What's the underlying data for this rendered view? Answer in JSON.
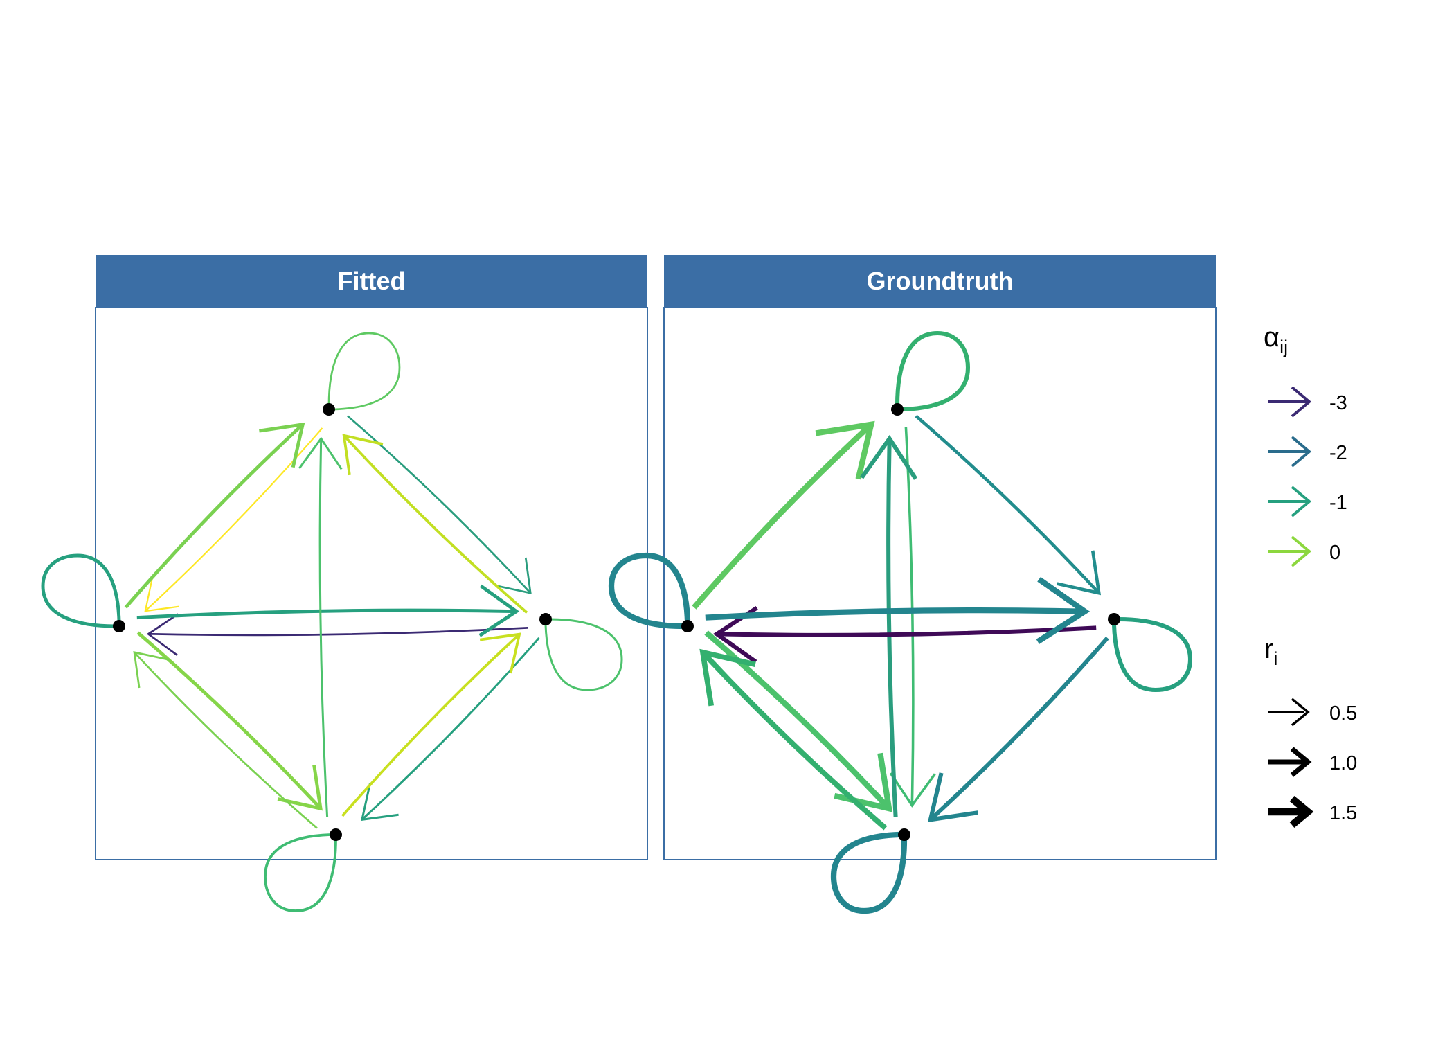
{
  "panels": [
    {
      "id": "fitted",
      "title": "Fitted",
      "edges": [
        {
          "from": "top",
          "to": "left",
          "color": "#fde725",
          "weight": 0.4
        },
        {
          "from": "left",
          "to": "top",
          "color": "#7ad151",
          "weight": 0.9
        },
        {
          "from": "top",
          "to": "right",
          "color": "#2a9d7e",
          "weight": 0.5
        },
        {
          "from": "right",
          "to": "top",
          "color": "#c2df23",
          "weight": 0.7
        },
        {
          "from": "right",
          "to": "left",
          "color": "#3b2a73",
          "weight": 0.5
        },
        {
          "from": "left",
          "to": "right",
          "color": "#26a07f",
          "weight": 0.9
        },
        {
          "from": "left",
          "to": "bottom",
          "color": "#86d549",
          "weight": 0.9
        },
        {
          "from": "bottom",
          "to": "left",
          "color": "#7ad151",
          "weight": 0.5
        },
        {
          "from": "bottom",
          "to": "top",
          "color": "#4cc26c",
          "weight": 0.55
        },
        {
          "from": "right",
          "to": "bottom",
          "color": "#26a07f",
          "weight": 0.55
        },
        {
          "from": "bottom",
          "to": "right",
          "color": "#c8e020",
          "weight": 0.7
        }
      ],
      "loops": [
        {
          "node": "top",
          "color": "#5ec962",
          "weight": 0.5
        },
        {
          "node": "left",
          "color": "#26a07f",
          "weight": 0.9
        },
        {
          "node": "right",
          "color": "#4cc26c",
          "weight": 0.55
        },
        {
          "node": "bottom",
          "color": "#3fbc73",
          "weight": 0.7
        }
      ]
    },
    {
      "id": "groundtruth",
      "title": "Groundtruth",
      "edges": [
        {
          "from": "left",
          "to": "top",
          "color": "#5ec962",
          "weight": 1.5
        },
        {
          "from": "top",
          "to": "bottom",
          "color": "#3fbc73",
          "weight": 0.65
        },
        {
          "from": "bottom",
          "to": "top",
          "color": "#2a9d7e",
          "weight": 1.1
        },
        {
          "from": "top",
          "to": "right",
          "color": "#228d8d",
          "weight": 0.85
        },
        {
          "from": "right",
          "to": "left",
          "color": "#3f0a57",
          "weight": 1.1
        },
        {
          "from": "left",
          "to": "right",
          "color": "#23858e",
          "weight": 1.5
        },
        {
          "from": "left",
          "to": "bottom",
          "color": "#4cc26c",
          "weight": 1.5
        },
        {
          "from": "bottom",
          "to": "left",
          "color": "#33b06f",
          "weight": 1.4
        },
        {
          "from": "right",
          "to": "bottom",
          "color": "#23858e",
          "weight": 1.1
        }
      ],
      "loops": [
        {
          "node": "top",
          "color": "#33b06f",
          "weight": 1.1
        },
        {
          "node": "left",
          "color": "#23858e",
          "weight": 1.5
        },
        {
          "node": "right",
          "color": "#26a07f",
          "weight": 1.1
        },
        {
          "node": "bottom",
          "color": "#23858e",
          "weight": 1.5
        }
      ]
    }
  ],
  "legend": {
    "color_title": "α",
    "color_title_sub": "ij",
    "color_items": [
      {
        "label": "-3",
        "color": "#3b2a73"
      },
      {
        "label": "-2",
        "color": "#2a6c8c"
      },
      {
        "label": "-1",
        "color": "#26a07f"
      },
      {
        "label": "0",
        "color": "#8cd73e"
      }
    ],
    "width_title": "r",
    "width_title_sub": "i",
    "width_items": [
      {
        "label": "0.5",
        "weight": 0.5
      },
      {
        "label": "1.0",
        "weight": 1.0
      },
      {
        "label": "1.5",
        "weight": 1.5
      }
    ]
  }
}
